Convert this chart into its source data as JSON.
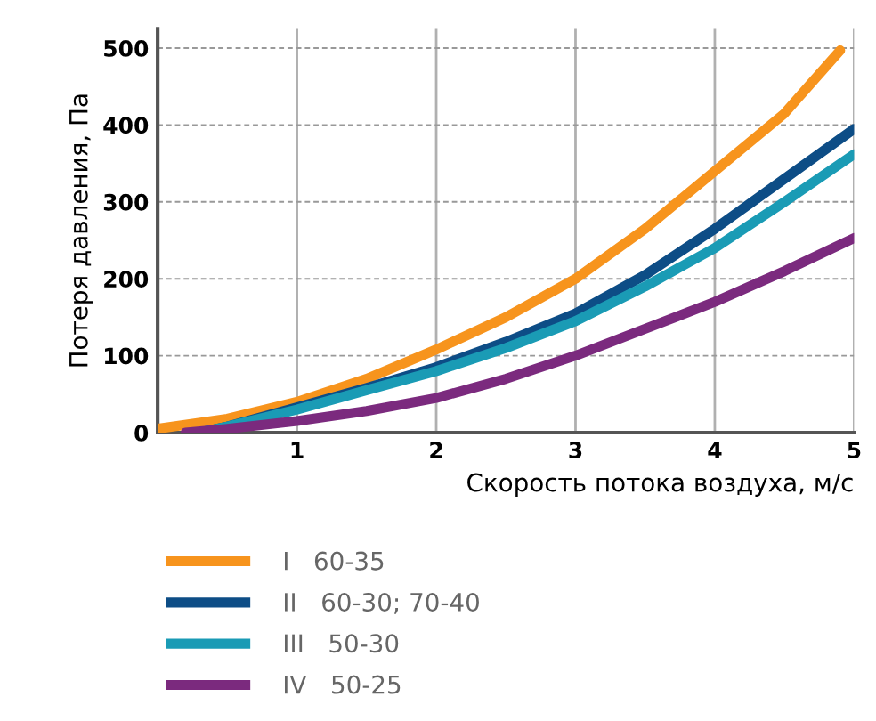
{
  "chart_data": {
    "type": "line",
    "xlabel": "Скорость потока воздуха, м/с",
    "ylabel": "Потеря давления, Па",
    "xlim": [
      0,
      5
    ],
    "ylim": [
      0,
      525
    ],
    "xticks": [
      1,
      2,
      3,
      4,
      5
    ],
    "yticks": [
      0,
      100,
      200,
      300,
      400,
      500
    ],
    "grid": true,
    "legend": "bottom left",
    "line_style": "solid",
    "series": [
      {
        "name": "I   60-35",
        "color": "#f7941d",
        "x": [
          0,
          0.5,
          1,
          1.5,
          2,
          2.5,
          3,
          3.5,
          4,
          4.5,
          4.9
        ],
        "values": [
          5,
          18,
          40,
          70,
          108,
          150,
          200,
          265,
          340,
          415,
          497
        ]
      },
      {
        "name": "II   60-30; 70-40",
        "color": "#0d4d86",
        "x": [
          0.3,
          0.5,
          1,
          1.5,
          2,
          2.5,
          3,
          3.5,
          4,
          4.5,
          5
        ],
        "values": [
          0,
          8,
          33,
          58,
          85,
          118,
          155,
          205,
          265,
          330,
          395
        ]
      },
      {
        "name": "III   50-30",
        "color": "#1a9bb5",
        "x": [
          0.3,
          0.5,
          1,
          1.5,
          2,
          2.5,
          3,
          3.5,
          4,
          4.5,
          5
        ],
        "values": [
          0,
          8,
          30,
          55,
          80,
          110,
          145,
          190,
          240,
          300,
          362
        ]
      },
      {
        "name": "IV   50-25",
        "color": "#7b2a7e",
        "x": [
          0.2,
          0.5,
          1,
          1.5,
          2,
          2.5,
          3,
          3.5,
          4,
          4.5,
          5
        ],
        "values": [
          0,
          5,
          15,
          28,
          45,
          70,
          100,
          135,
          170,
          210,
          253
        ]
      }
    ]
  }
}
